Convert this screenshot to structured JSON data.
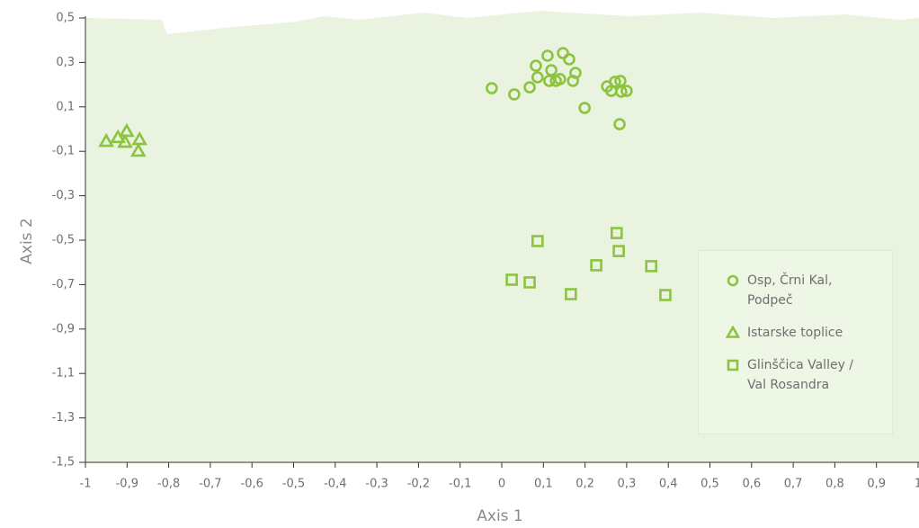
{
  "chart_data": {
    "type": "scatter",
    "xlabel": "Axis 1",
    "ylabel": "Axis 2",
    "xlim": [
      -1,
      1
    ],
    "xticks": [
      -1,
      {
        "value": -0.9,
        "label": "-0,9"
      },
      {
        "value": -0.8,
        "label": "-0,8"
      },
      {
        "value": -0.7,
        "label": "-0,7"
      },
      {
        "value": -0.6,
        "label": "-0,6"
      },
      {
        "value": -0.5,
        "label": "-0,5"
      },
      {
        "value": -0.4,
        "label": "-0,4"
      },
      {
        "value": -0.3,
        "label": "-0,3"
      },
      {
        "value": -0.2,
        "label": "-0,2"
      },
      {
        "value": -0.1,
        "label": "-0,1"
      },
      0,
      {
        "value": 0.1,
        "label": "0,1"
      },
      {
        "value": 0.2,
        "label": "0,2"
      },
      {
        "value": 0.3,
        "label": "0,3"
      },
      {
        "value": 0.4,
        "label": "0,4"
      },
      {
        "value": 0.5,
        "label": "0,5"
      },
      {
        "value": 0.6,
        "label": "0,6"
      },
      {
        "value": 0.7,
        "label": "0,7"
      },
      {
        "value": 0.8,
        "label": "0,8"
      },
      {
        "value": 0.9,
        "label": "0,9"
      },
      1
    ],
    "ylim": [
      -1.5,
      0.5
    ],
    "yticks": [
      {
        "value": 0.5,
        "label": "0,5"
      },
      {
        "value": 0.3,
        "label": "0,3"
      },
      {
        "value": 0.1,
        "label": "0,1"
      },
      {
        "value": -0.1,
        "label": "-0,1"
      },
      {
        "value": -0.3,
        "label": "-0,3"
      },
      {
        "value": -0.5,
        "label": "-0,5"
      },
      {
        "value": -0.7,
        "label": "-0,7"
      },
      {
        "value": -0.9,
        "label": "-0,9"
      },
      {
        "value": -1.1,
        "label": "-1,1"
      },
      {
        "value": -1.3,
        "label": "-1,3"
      },
      {
        "value": -1.5,
        "label": "-1,5"
      }
    ],
    "series": [
      {
        "name": "Osp, Črni Kal, Podpeč",
        "color": "#8cc43f",
        "marker": "circle",
        "x": [
          -0.024,
          0.03,
          0.067,
          0.082,
          0.086,
          0.11,
          0.119,
          0.114,
          0.13,
          0.14,
          0.147,
          0.162,
          0.171,
          0.177,
          0.199,
          0.253,
          0.263,
          0.272,
          0.285,
          0.287,
          0.3,
          0.283
        ],
        "y": [
          0.184,
          0.156,
          0.188,
          0.285,
          0.233,
          0.33,
          0.265,
          0.217,
          0.217,
          0.225,
          0.342,
          0.314,
          0.217,
          0.253,
          0.095,
          0.192,
          0.172,
          0.213,
          0.217,
          0.168,
          0.172,
          0.022
        ]
      },
      {
        "name": "Istarske toplice",
        "color": "#8cc43f",
        "marker": "triangle",
        "x": [
          -0.95,
          -0.922,
          -0.901,
          -0.905,
          -0.87,
          -0.873
        ],
        "y": [
          -0.055,
          -0.038,
          -0.01,
          -0.059,
          -0.047,
          -0.099
        ]
      },
      {
        "name": "Glinščica Valley / Val Rosandra",
        "color": "#8cc43f",
        "marker": "square",
        "x": [
          0.024,
          0.067,
          0.086,
          0.166,
          0.227,
          0.276,
          0.281,
          0.359,
          0.393
        ],
        "y": [
          -0.678,
          -0.69,
          -0.504,
          -0.743,
          -0.613,
          -0.468,
          -0.549,
          -0.617,
          -0.747
        ]
      }
    ]
  }
}
